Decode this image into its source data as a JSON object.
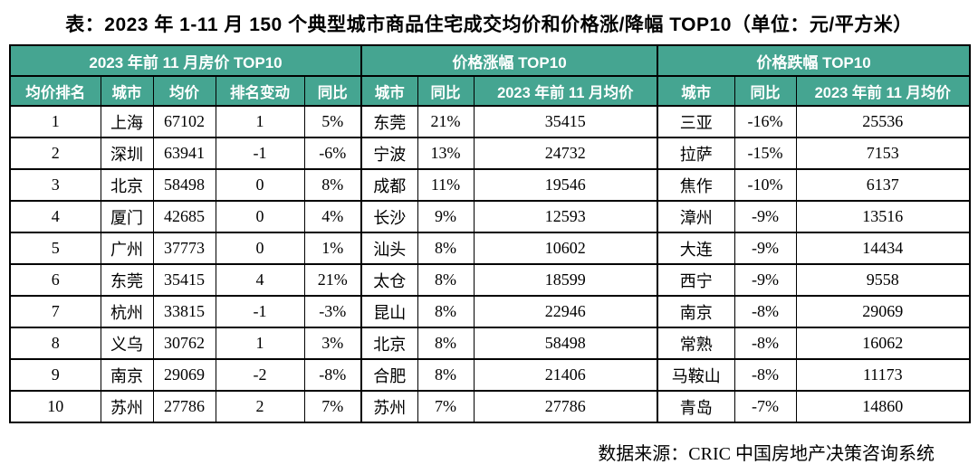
{
  "title": "表：2023 年 1-11 月 150 个典型城市商品住宅成交均价和价格涨/降幅 TOP10（单位：元/平方米）",
  "footer": "数据来源：CRIC 中国房地产决策咨询系统",
  "colors": {
    "header_bg": "#45a591",
    "header_text": "#ffffff",
    "border": "#000000",
    "body_text": "#000000"
  },
  "table": {
    "sections": [
      {
        "title": "2023 年前 11 月房价 TOP10",
        "columns": [
          "均价排名",
          "城市",
          "均价",
          "排名变动",
          "同比"
        ]
      },
      {
        "title": "价格涨幅 TOP10",
        "columns": [
          "城市",
          "同比",
          "2023 年前 11 月均价"
        ]
      },
      {
        "title": "价格跌幅 TOP10",
        "columns": [
          "城市",
          "同比",
          "2023 年前 11 月均价"
        ]
      }
    ],
    "rows": [
      [
        "1",
        "上海",
        "67102",
        "1",
        "5%",
        "东莞",
        "21%",
        "35415",
        "三亚",
        "-16%",
        "25536"
      ],
      [
        "2",
        "深圳",
        "63941",
        "-1",
        "-6%",
        "宁波",
        "13%",
        "24732",
        "拉萨",
        "-15%",
        "7153"
      ],
      [
        "3",
        "北京",
        "58498",
        "0",
        "8%",
        "成都",
        "11%",
        "19546",
        "焦作",
        "-10%",
        "6137"
      ],
      [
        "4",
        "厦门",
        "42685",
        "0",
        "4%",
        "长沙",
        "9%",
        "12593",
        "漳州",
        "-9%",
        "13516"
      ],
      [
        "5",
        "广州",
        "37773",
        "0",
        "1%",
        "汕头",
        "8%",
        "10602",
        "大连",
        "-9%",
        "14434"
      ],
      [
        "6",
        "东莞",
        "35415",
        "4",
        "21%",
        "太仓",
        "8%",
        "18599",
        "西宁",
        "-9%",
        "9558"
      ],
      [
        "7",
        "杭州",
        "33815",
        "-1",
        "-3%",
        "昆山",
        "8%",
        "22946",
        "南京",
        "-8%",
        "29069"
      ],
      [
        "8",
        "义乌",
        "30762",
        "1",
        "3%",
        "北京",
        "8%",
        "58498",
        "常熟",
        "-8%",
        "16062"
      ],
      [
        "9",
        "南京",
        "29069",
        "-2",
        "-8%",
        "合肥",
        "8%",
        "21406",
        "马鞍山",
        "-8%",
        "11173"
      ],
      [
        "10",
        "苏州",
        "27786",
        "2",
        "7%",
        "苏州",
        "7%",
        "27786",
        "青岛",
        "-7%",
        "14860"
      ]
    ]
  }
}
